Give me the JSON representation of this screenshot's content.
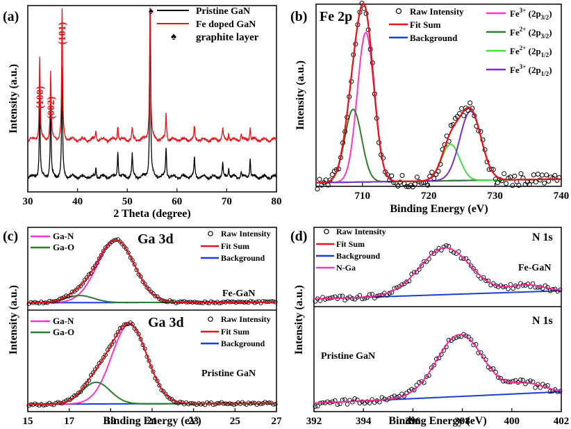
{
  "chart_data": [
    {
      "panel": "(a)",
      "type": "line",
      "title": "",
      "xlabel": "2 Theta (degree)",
      "ylabel": "Intensity (a.u.)",
      "xlim": [
        30,
        80
      ],
      "xticks": [
        30,
        40,
        50,
        60,
        70,
        80
      ],
      "series": [
        {
          "name": "Pristine GaN",
          "color": "#000000",
          "baseline": 0.08,
          "peaks": [
            [
              32.4,
              0.42
            ],
            [
              34.6,
              0.38
            ],
            [
              36.9,
              0.58
            ],
            [
              43.7,
              0.05
            ],
            [
              48.1,
              0.14
            ],
            [
              51.0,
              0.12
            ],
            [
              54.6,
              0.92
            ],
            [
              57.8,
              0.16
            ],
            [
              63.5,
              0.1
            ],
            [
              69.2,
              0.07
            ],
            [
              70.4,
              0.05
            ],
            [
              72.9,
              0.03
            ],
            [
              74.7,
              0.1
            ]
          ]
        },
        {
          "name": "Fe doped GaN",
          "color": "#e8141c",
          "baseline": 0.28,
          "peaks": [
            [
              32.4,
              0.45
            ],
            [
              34.6,
              0.36
            ],
            [
              36.9,
              0.72
            ],
            [
              43.7,
              0.05
            ],
            [
              48.1,
              0.08
            ],
            [
              51.0,
              0.06
            ],
            [
              54.6,
              0.9
            ],
            [
              57.8,
              0.14
            ],
            [
              63.5,
              0.07
            ],
            [
              69.2,
              0.06
            ],
            [
              70.4,
              0.04
            ],
            [
              72.9,
              0.03
            ],
            [
              74.7,
              0.07
            ]
          ]
        }
      ],
      "legend": [
        "Pristine GaN",
        "Fe doped GaN",
        "graphite layer"
      ],
      "annotations": [
        {
          "text": "(100)",
          "x": 32.4
        },
        {
          "text": "(002)",
          "x": 34.6
        },
        {
          "text": "(101)",
          "x": 36.9
        },
        {
          "text": "♠",
          "x": 54.6
        }
      ]
    },
    {
      "panel": "(b)",
      "type": "line",
      "title": "Fe 2p",
      "xlabel": "Binding Energy (eV)",
      "ylabel": "Intensity (a.u.)",
      "xlim": [
        703,
        740
      ],
      "xticks": [
        710,
        720,
        730,
        740
      ],
      "background": [
        0.02,
        0.04
      ],
      "components": [
        {
          "name": "Fe3+ (2p3/2)",
          "color": "#ff33cc",
          "center": 710.5,
          "fwhm": 3.0,
          "height": 0.82
        },
        {
          "name": "Fe2+ (2p3/2)",
          "color": "#2a7d2a",
          "center": 708.6,
          "fwhm": 3.0,
          "height": 0.4
        },
        {
          "name": "Fe2+ (2p1/2)",
          "color": "#44dd44",
          "center": 723.3,
          "fwhm": 3.2,
          "height": 0.2
        },
        {
          "name": "Fe3+ (2p1/2)",
          "color": "#7b2ccc",
          "center": 726.3,
          "fwhm": 3.8,
          "height": 0.38
        }
      ],
      "legend": [
        "Raw Intensity",
        "Fit Sum",
        "Background",
        "Fe³⁺ (2p₃/₂)",
        "Fe²⁺ (2p₃/₂)",
        "Fe²⁺ (2p₁/₂)",
        "Fe³⁺ (2p₁/₂)"
      ]
    },
    {
      "panel": "(c)",
      "type": "line",
      "title": "Ga 3d",
      "xlabel": "Binding Energy (eV)",
      "ylabel": "Intensity (a.u.)",
      "xlim": [
        15,
        27
      ],
      "xticks": [
        15,
        17,
        19,
        21,
        23,
        25,
        27
      ],
      "subplots": [
        {
          "label": "Fe-GaN",
          "title": "Ga 3d",
          "components": [
            {
              "name": "Ga-N",
              "color": "#ff33cc",
              "center": 19.25,
              "fwhm": 2.1,
              "height": 0.88
            },
            {
              "name": "Ga-O",
              "color": "#2a7d2a",
              "center": 17.5,
              "fwhm": 1.6,
              "height": 0.1
            }
          ]
        },
        {
          "label": "Pristine GaN",
          "title": "Ga 3d",
          "components": [
            {
              "name": "Ga-N",
              "color": "#ff33cc",
              "center": 19.9,
              "fwhm": 2.0,
              "height": 0.88
            },
            {
              "name": "Ga-O",
              "color": "#2a7d2a",
              "center": 18.3,
              "fwhm": 1.6,
              "height": 0.24
            }
          ]
        }
      ],
      "legend": [
        "Ga-N",
        "Ga-O",
        "Raw Intensity",
        "Fit Sum",
        "Background"
      ]
    },
    {
      "panel": "(d)",
      "type": "line",
      "title": "N 1s",
      "xlabel": "Binding Energy (eV)",
      "ylabel": "Intensity (a.u.)",
      "xlim": [
        392,
        402
      ],
      "xticks": [
        392,
        394,
        396,
        398,
        400,
        402
      ],
      "subplots": [
        {
          "label": "Fe-GaN",
          "title": "N 1s",
          "center": 397.3,
          "fwhm": 2.4,
          "height": 0.68
        },
        {
          "label": "Pristine GaN",
          "title": "N 1s",
          "center": 397.9,
          "fwhm": 2.2,
          "height": 0.65
        }
      ],
      "legend": [
        "Raw Intensity",
        "Fit Sum",
        "Background",
        "N-Ga"
      ]
    }
  ],
  "labels": {
    "a_panel": "(a)",
    "a_xlabel": "2 Theta (degree)",
    "a_ylabel": "Intensity (a.u.)",
    "a_leg1": "Pristine GaN",
    "a_leg2": "Fe doped GaN",
    "a_leg3": "graphite layer",
    "a_spade": "♠",
    "a_hkl1": "(100)",
    "a_hkl2": "(002)",
    "a_hkl3": "(101)",
    "b_panel": "(b)",
    "b_title": "Fe 2p",
    "b_xlabel": "Binding Energy (eV)",
    "b_ylabel": "Intensity (a.u.)",
    "b_leg_raw": "Raw Intensity",
    "b_leg_fit": "Fit Sum",
    "b_leg_bg": "Background",
    "c_panel": "(c)",
    "c_title": "Ga 3d",
    "c_xlabel": "Binding Energy (eV)",
    "c_ylabel": "Intensity (a.u.)",
    "c_leg_gan": "Ga-N",
    "c_leg_gao": "Ga-O",
    "c_leg_raw": "Raw Intensity",
    "c_leg_fit": "Fit Sum",
    "c_leg_bg": "Background",
    "c_top_label": "Fe-GaN",
    "c_bot_label": "Pristine GaN",
    "d_panel": "(d)",
    "d_title": "N 1s",
    "d_xlabel": "Binding Energy (eV)",
    "d_ylabel": "Intensity (a.u.)",
    "d_leg_raw": "Raw Intensity",
    "d_leg_fit": "Fit Sum",
    "d_leg_bg": "Background",
    "d_leg_nga": "N-Ga",
    "d_top_label": "Fe-GaN",
    "d_bot_label": "Pristine GaN"
  },
  "colors": {
    "black": "#000000",
    "red": "#e8141c",
    "blue": "#1a3fd8",
    "magenta": "#ff33cc",
    "green": "#2a7d2a",
    "lightgreen": "#44dd44",
    "purple": "#7b2ccc"
  }
}
